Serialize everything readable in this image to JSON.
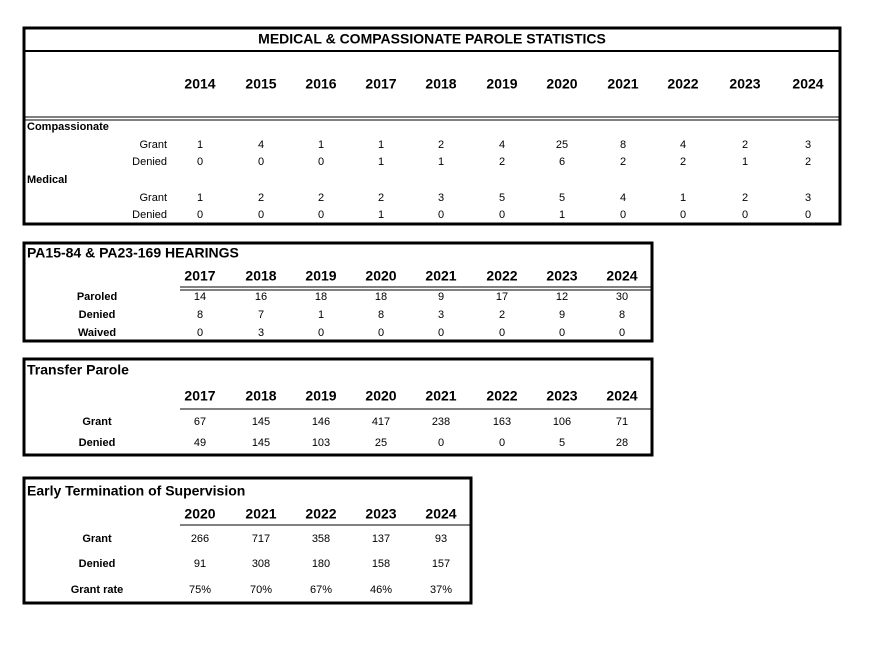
{
  "tables": [
    {
      "title": "MEDICAL & COMPASSIONATE PAROLE STATISTICS",
      "years": [
        2014,
        2015,
        2016,
        2017,
        2018,
        2019,
        2020,
        2021,
        2022,
        2023,
        2024
      ],
      "groups": [
        {
          "label": "Compassionate",
          "rows": [
            {
              "label": "Grant",
              "values": [
                1,
                4,
                1,
                1,
                2,
                4,
                25,
                8,
                4,
                2,
                3
              ]
            },
            {
              "label": "Denied",
              "values": [
                0,
                0,
                0,
                1,
                1,
                2,
                6,
                2,
                2,
                1,
                2
              ]
            }
          ]
        },
        {
          "label": "Medical",
          "rows": [
            {
              "label": "Grant",
              "values": [
                1,
                2,
                2,
                2,
                3,
                5,
                5,
                4,
                1,
                2,
                3
              ]
            },
            {
              "label": "Denied",
              "values": [
                0,
                0,
                0,
                1,
                0,
                0,
                1,
                0,
                0,
                0,
                0
              ]
            }
          ]
        }
      ]
    },
    {
      "title": "PA15-84 & PA23-169 HEARINGS",
      "years": [
        2017,
        2018,
        2019,
        2020,
        2021,
        2022,
        2023,
        2024
      ],
      "rows": [
        {
          "label": "Paroled",
          "values": [
            14,
            16,
            18,
            18,
            9,
            17,
            12,
            30
          ]
        },
        {
          "label": "Denied",
          "values": [
            8,
            7,
            1,
            8,
            3,
            2,
            9,
            8
          ]
        },
        {
          "label": "Waived",
          "values": [
            0,
            3,
            0,
            0,
            0,
            0,
            0,
            0
          ]
        }
      ]
    },
    {
      "title": "Transfer Parole",
      "years": [
        2017,
        2018,
        2019,
        2020,
        2021,
        2022,
        2023,
        2024
      ],
      "rows": [
        {
          "label": "Grant",
          "values": [
            67,
            145,
            146,
            417,
            238,
            163,
            106,
            71
          ]
        },
        {
          "label": "Denied",
          "values": [
            49,
            145,
            103,
            25,
            0,
            0,
            5,
            28
          ]
        }
      ]
    },
    {
      "title": "Early Termination of Supervision",
      "years": [
        2020,
        2021,
        2022,
        2023,
        2024
      ],
      "rows": [
        {
          "label": "Grant",
          "values": [
            266,
            717,
            358,
            137,
            93
          ]
        },
        {
          "label": "Denied",
          "values": [
            91,
            308,
            180,
            158,
            157
          ]
        },
        {
          "label": "Grant rate",
          "values": [
            "75%",
            "70%",
            "67%",
            "46%",
            "37%"
          ]
        }
      ]
    }
  ]
}
